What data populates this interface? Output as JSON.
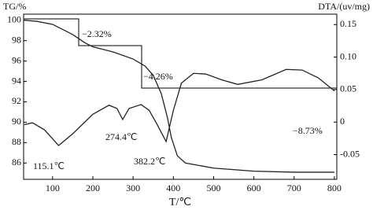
{
  "chart_data": {
    "type": "line",
    "x_label": "T/℃",
    "y_label": "TG/%",
    "y2_label": "DTA/(uv/mg)",
    "xlim": [
      28,
      806
    ],
    "xticks": [
      100,
      200,
      300,
      400,
      500,
      600,
      700,
      800
    ],
    "ylim": [
      84.4,
      100.6
    ],
    "yticks": [
      86,
      88,
      90,
      92,
      94,
      96,
      98,
      100
    ],
    "y2lim": [
      -0.088,
      0.166
    ],
    "y2ticks": [
      -0.05,
      0,
      0.05,
      {
        "value": 0.1,
        "label": "0.10"
      },
      0.15
    ],
    "series": [
      {
        "name": "TG",
        "color": "#222222",
        "x": [
          30,
          60,
          100,
          150,
          180,
          200,
          250,
          300,
          330,
          350,
          370,
          385,
          395,
          410,
          430,
          500,
          600,
          700,
          800
        ],
        "values": [
          100.0,
          99.9,
          99.6,
          98.6,
          97.8,
          97.4,
          96.9,
          96.2,
          95.5,
          94.6,
          92.8,
          90.5,
          88.5,
          86.7,
          86.0,
          85.5,
          85.2,
          85.1,
          85.1
        ]
      },
      {
        "name": "DTA",
        "color": "#222222",
        "axis": "y2",
        "x": [
          30,
          50,
          80,
          115,
          150,
          200,
          240,
          260,
          274,
          290,
          320,
          340,
          360,
          382,
          400,
          420,
          450,
          480,
          520,
          560,
          620,
          680,
          720,
          760,
          790,
          800
        ],
        "values": [
          -0.004,
          -0.001,
          -0.012,
          -0.036,
          -0.018,
          0.012,
          0.026,
          0.021,
          0.004,
          0.021,
          0.027,
          0.018,
          -0.004,
          -0.03,
          0.018,
          0.06,
          0.075,
          0.074,
          0.065,
          0.058,
          0.065,
          0.081,
          0.08,
          0.068,
          0.053,
          0.048
        ]
      }
    ],
    "annotations": [
      "−2.32%",
      "−4.26%",
      "−8.73%",
      "115.1℃",
      "274.4℃",
      "382.2℃"
    ]
  }
}
